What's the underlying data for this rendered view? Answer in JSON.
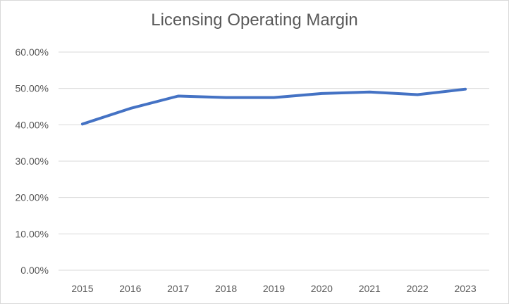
{
  "chart_data": {
    "type": "line",
    "title": "Licensing Operating Margin",
    "xlabel": "",
    "ylabel": "",
    "categories": [
      "2015",
      "2016",
      "2017",
      "2018",
      "2019",
      "2020",
      "2021",
      "2022",
      "2023"
    ],
    "series": [
      {
        "color": "#4472c4",
        "values": [
          40.2,
          44.5,
          47.9,
          47.5,
          47.5,
          48.6,
          49.0,
          48.3,
          49.8
        ]
      }
    ],
    "y_ticks": [
      "0.00%",
      "10.00%",
      "20.00%",
      "30.00%",
      "40.00%",
      "50.00%",
      "60.00%"
    ],
    "ylim": [
      0,
      60
    ],
    "grid": true,
    "legend": "none"
  }
}
